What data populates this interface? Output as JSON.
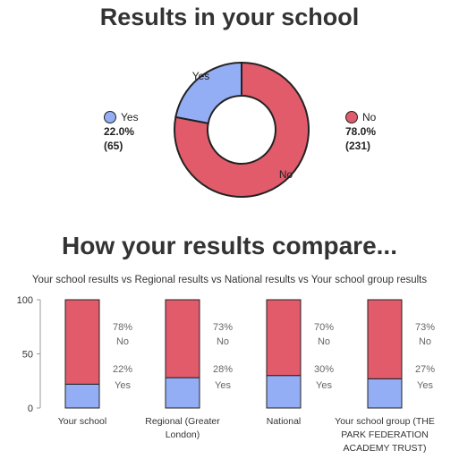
{
  "colors": {
    "yes": "#94aef5",
    "no": "#e15b6b",
    "outline": "#222222"
  },
  "title": "Results in your school",
  "compare_title": "How your results compare...",
  "chart_data": [
    {
      "type": "pie",
      "title": "Results in your school",
      "labels": [
        "Yes",
        "No"
      ],
      "values": [
        22.0,
        78.0
      ],
      "counts": [
        65,
        231
      ],
      "value_labels": [
        "22.0%",
        "78.0%"
      ],
      "count_labels": [
        "(65)",
        "(231)"
      ]
    },
    {
      "type": "bar",
      "stacked": true,
      "title": "Your school results vs Regional results vs National results vs Your school group results",
      "categories": [
        "Your school",
        "Regional (Greater London)",
        "National",
        "Your school group (THE PARK FEDERATION ACADEMY TRUST)"
      ],
      "category_lines": [
        [
          "Your school"
        ],
        [
          "Regional (Greater",
          "London)"
        ],
        [
          "National"
        ],
        [
          "Your school group (THE",
          "PARK FEDERATION",
          "ACADEMY TRUST)"
        ]
      ],
      "series": [
        {
          "name": "Yes",
          "values": [
            22,
            28,
            30,
            27
          ]
        },
        {
          "name": "No",
          "values": [
            78,
            73,
            70,
            73
          ]
        }
      ],
      "ylim": [
        0,
        100
      ],
      "yticks": [
        0,
        50,
        100
      ],
      "grid": false
    }
  ]
}
